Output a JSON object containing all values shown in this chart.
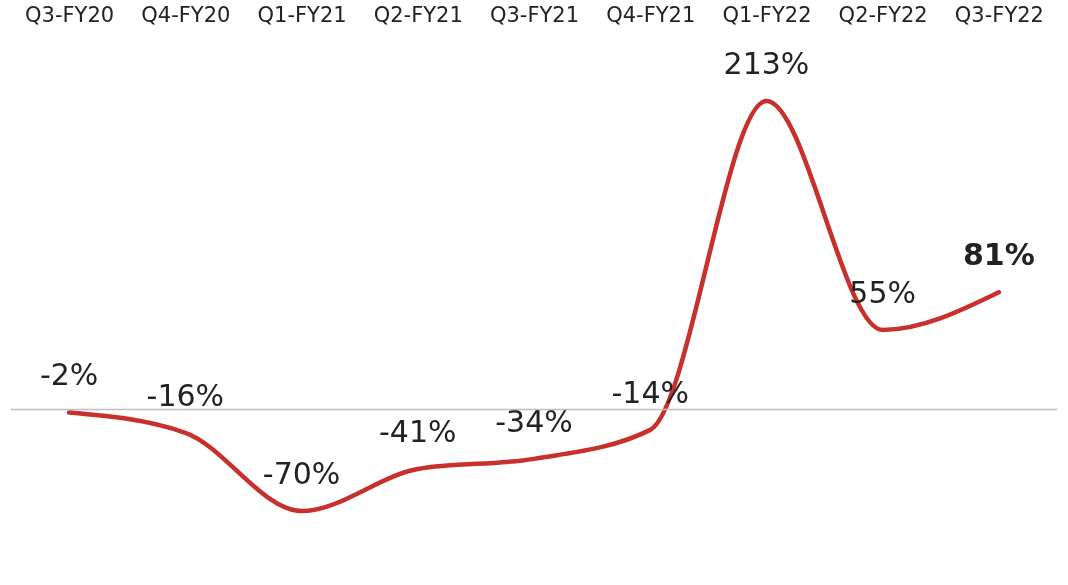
{
  "chart_data": {
    "type": "line",
    "categories": [
      "Q3-FY20",
      "Q4-FY20",
      "Q1-FY21",
      "Q2-FY21",
      "Q3-FY21",
      "Q4-FY21",
      "Q1-FY22",
      "Q2-FY22",
      "Q3-FY22"
    ],
    "series": [
      {
        "color": "#c8302c",
        "values": [
          -2,
          -16,
          -70,
          -41,
          -34,
          -14,
          213,
          55,
          81
        ],
        "value_labels": [
          "-2%",
          "-16%",
          "-70%",
          "-41%",
          "-34%",
          "-14%",
          "213%",
          "55%",
          "81%"
        ]
      }
    ],
    "tick_labels": "x",
    "marker": "none",
    "ref_lines": [
      {
        "axis": "y",
        "value": 0,
        "color": "#bfbfbf"
      }
    ]
  }
}
